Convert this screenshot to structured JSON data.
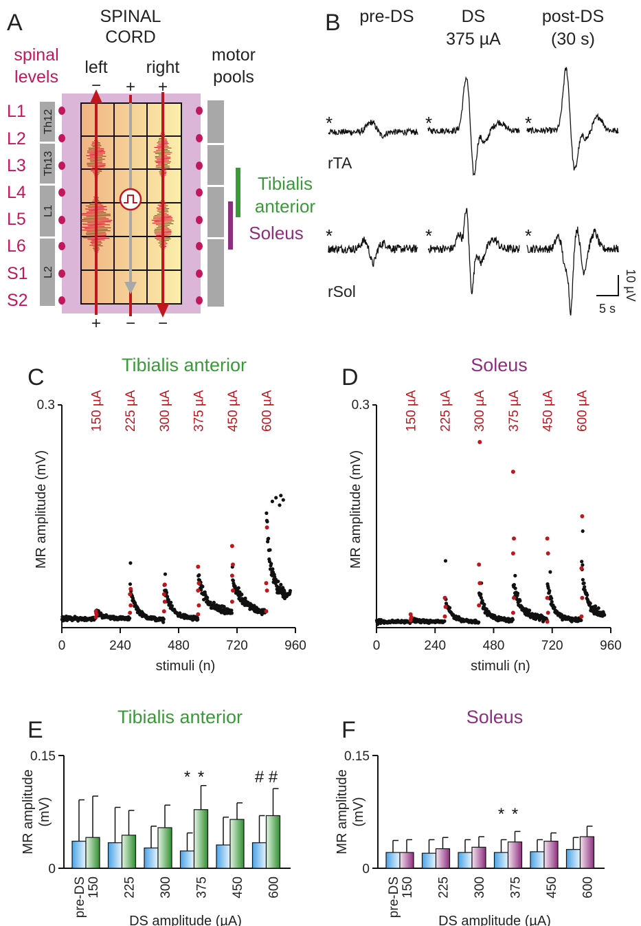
{
  "panels": {
    "A": {
      "letter": "A",
      "title_line1": "SPINAL",
      "title_line2": "CORD",
      "spinal_levels_l1": "spinal",
      "spinal_levels_l2": "levels",
      "left": "left",
      "right": "right",
      "motor_pools_l1": "motor",
      "motor_pools_l2": "pools",
      "levels": [
        "L1",
        "L2",
        "L3",
        "L4",
        "L5",
        "L6",
        "S1",
        "S2"
      ],
      "vertebrae": [
        "Th12",
        "Th13",
        "L1",
        "L2"
      ],
      "top_signs": [
        "−",
        "+",
        "+"
      ],
      "bottom_signs": [
        "+",
        "−",
        "−"
      ],
      "muscle_ta_l1": "Tibialis",
      "muscle_ta_l2": "anterior",
      "muscle_sol": "Soleus",
      "colors": {
        "levels": "#c2185b",
        "ta": "#3a9a3a",
        "sol": "#8e2e7e",
        "electrode": "#c0161d",
        "vertebra": "#a8a8a8"
      }
    },
    "B": {
      "letter": "B",
      "col1": "pre-DS",
      "col2_l1": "DS",
      "col2_l2": "375 µA",
      "col3_l1": "post-DS",
      "col3_l2": "(30 s)",
      "row1": "rTA",
      "row2": "rSol",
      "star": "*",
      "scale_y": "10 µV",
      "scale_x": "5 s"
    }
  },
  "chart_data": [
    {
      "panel": "C",
      "type": "scatter",
      "title": "Tibialis anterior",
      "title_color": "#3a9a3a",
      "xlabel": "stimuli (n)",
      "ylabel": "MR amplitude (mV)",
      "xlim": [
        0,
        960
      ],
      "ylim": [
        0,
        0.3
      ],
      "xticks": [
        0,
        240,
        480,
        720,
        960
      ],
      "yticks": [
        0.3
      ],
      "stim_labels": [
        "150 µA",
        "225 µA",
        "300 µA",
        "375 µA",
        "450 µA",
        "600 µA"
      ],
      "stim_x": [
        140,
        280,
        420,
        560,
        700,
        840
      ],
      "blocks": [
        {
          "x": [
            0,
            140
          ],
          "base": 0.012,
          "peak": 0.012,
          "tail": 0.012,
          "spread": 0.005
        },
        {
          "x": [
            140,
            280
          ],
          "base": 0.014,
          "peak": 0.022,
          "tail": 0.012,
          "spread": 0.005
        },
        {
          "x": [
            280,
            420
          ],
          "base": 0.015,
          "peak": 0.055,
          "tail": 0.01,
          "spread": 0.006
        },
        {
          "x": [
            420,
            560
          ],
          "base": 0.016,
          "peak": 0.06,
          "tail": 0.012,
          "spread": 0.007
        },
        {
          "x": [
            560,
            700
          ],
          "base": 0.03,
          "peak": 0.07,
          "tail": 0.02,
          "spread": 0.012
        },
        {
          "x": [
            700,
            840
          ],
          "base": 0.035,
          "peak": 0.07,
          "tail": 0.02,
          "spread": 0.012
        },
        {
          "x": [
            840,
            940
          ],
          "base": 0.05,
          "peak": 0.16,
          "tail": 0.045,
          "spread": 0.02
        }
      ],
      "highlights": [
        {
          "x": 140,
          "y": [
            0.014,
            0.018,
            0.022
          ]
        },
        {
          "x": 280,
          "y": [
            0.02,
            0.03,
            0.045,
            0.052
          ]
        },
        {
          "x": 420,
          "y": [
            0.022,
            0.035,
            0.045,
            0.058
          ]
        },
        {
          "x": 560,
          "y": [
            0.018,
            0.03,
            0.05,
            0.06,
            0.082
          ]
        },
        {
          "x": 700,
          "y": [
            0.035,
            0.05,
            0.07,
            0.085,
            0.11
          ]
        },
        {
          "x": 840,
          "y": [
            0.022,
            0.05,
            0.06,
            0.135
          ]
        }
      ],
      "outliers": [
        {
          "x": 282,
          "y": 0.087
        },
        {
          "x": 425,
          "y": 0.072
        },
        {
          "x": 865,
          "y": 0.17
        },
        {
          "x": 880,
          "y": 0.175
        },
        {
          "x": 895,
          "y": 0.165
        },
        {
          "x": 900,
          "y": 0.178
        },
        {
          "x": 910,
          "y": 0.172
        }
      ]
    },
    {
      "panel": "D",
      "type": "scatter",
      "title": "Soleus",
      "title_color": "#8e2e7e",
      "xlabel": "stimuli (n)",
      "ylabel": "MR amplitude (mV)",
      "xlim": [
        0,
        960
      ],
      "ylim": [
        0,
        0.3
      ],
      "xticks": [
        0,
        240,
        480,
        720,
        960
      ],
      "yticks": [
        0.3
      ],
      "stim_labels": [
        "150 µA",
        "225 µA",
        "300 µA",
        "375 µA",
        "450 µA",
        "600 µA"
      ],
      "stim_x": [
        140,
        280,
        420,
        560,
        700,
        840
      ],
      "blocks": [
        {
          "x": [
            0,
            140
          ],
          "base": 0.008,
          "peak": 0.008,
          "tail": 0.008,
          "spread": 0.004
        },
        {
          "x": [
            140,
            280
          ],
          "base": 0.008,
          "peak": 0.012,
          "tail": 0.008,
          "spread": 0.004
        },
        {
          "x": [
            280,
            420
          ],
          "base": 0.01,
          "peak": 0.04,
          "tail": 0.008,
          "spread": 0.005
        },
        {
          "x": [
            420,
            560
          ],
          "base": 0.012,
          "peak": 0.05,
          "tail": 0.01,
          "spread": 0.006
        },
        {
          "x": [
            560,
            700
          ],
          "base": 0.02,
          "peak": 0.06,
          "tail": 0.012,
          "spread": 0.01
        },
        {
          "x": [
            700,
            840
          ],
          "base": 0.012,
          "peak": 0.06,
          "tail": 0.01,
          "spread": 0.007
        },
        {
          "x": [
            840,
            935
          ],
          "base": 0.025,
          "peak": 0.09,
          "tail": 0.018,
          "spread": 0.012
        }
      ],
      "highlights": [
        {
          "x": 140,
          "y": [
            0.01,
            0.014,
            0.018
          ]
        },
        {
          "x": 280,
          "y": [
            0.015,
            0.028,
            0.04
          ]
        },
        {
          "x": 420,
          "y": [
            0.03,
            0.06,
            0.085,
            0.25
          ]
        },
        {
          "x": 560,
          "y": [
            0.02,
            0.04,
            0.1,
            0.12,
            0.21
          ]
        },
        {
          "x": 700,
          "y": [
            0.008,
            0.02,
            0.04,
            0.1,
            0.12
          ]
        },
        {
          "x": 840,
          "y": [
            0.015,
            0.04,
            0.08,
            0.15
          ]
        }
      ],
      "outliers": [
        {
          "x": 283,
          "y": 0.09
        },
        {
          "x": 430,
          "y": 0.06
        },
        {
          "x": 568,
          "y": 0.07
        },
        {
          "x": 712,
          "y": 0.075
        },
        {
          "x": 845,
          "y": 0.13
        }
      ]
    },
    {
      "panel": "E",
      "type": "bar",
      "title": "Tibialis anterior",
      "title_color": "#3a9a3a",
      "xlabel": "DS amplitude (µA)",
      "ylabel_l1": "MR amplitude",
      "ylabel_l2": "(mV)",
      "ylim": [
        0,
        0.15
      ],
      "yticks": [
        0,
        0.15
      ],
      "ytick_labels": [
        "0",
        "0.15"
      ],
      "categories": [
        "pre-DS",
        "150",
        "225",
        "300",
        "375",
        "450",
        "600"
      ],
      "pre_ds": {
        "values": [
          0.036,
          0.034,
          0.027,
          0.023,
          0.031,
          0.034
        ],
        "errors": [
          0.055,
          0.047,
          0.029,
          0.024,
          0.037,
          0.036
        ],
        "color": "#58b0ea"
      },
      "ds": {
        "values": [
          0.041,
          0.044,
          0.054,
          0.078,
          0.065,
          0.07
        ],
        "errors": [
          0.055,
          0.033,
          0.03,
          0.032,
          0.022,
          0.036
        ],
        "color": "#3a9a3a"
      },
      "markers": [
        {
          "pair": 3,
          "text": "*",
          "on": "pre"
        },
        {
          "pair": 3,
          "text": "*",
          "on": "ds"
        },
        {
          "pair": 5,
          "text": "#",
          "on": "pre"
        },
        {
          "pair": 5,
          "text": "#",
          "on": "ds"
        }
      ]
    },
    {
      "panel": "F",
      "type": "bar",
      "title": "Soleus",
      "title_color": "#8e2e7e",
      "xlabel": "DS amplitude (µA)",
      "ylabel_l1": "MR amplitude",
      "ylabel_l2": "(mV)",
      "ylim": [
        0,
        0.15
      ],
      "yticks": [
        0,
        0.15
      ],
      "ytick_labels": [
        "0",
        "0.15"
      ],
      "categories": [
        "pre-DS",
        "150",
        "225",
        "300",
        "375",
        "450",
        "600"
      ],
      "pre_ds": {
        "values": [
          0.021,
          0.02,
          0.021,
          0.021,
          0.022,
          0.025
        ],
        "errors": [
          0.016,
          0.018,
          0.017,
          0.017,
          0.016,
          0.016
        ],
        "color": "#58b0ea"
      },
      "ds": {
        "values": [
          0.021,
          0.026,
          0.028,
          0.035,
          0.036,
          0.042
        ],
        "errors": [
          0.017,
          0.015,
          0.014,
          0.014,
          0.011,
          0.014
        ],
        "color": "#8e2e7e"
      },
      "markers": [
        {
          "pair": 3,
          "text": "*",
          "on": "pre"
        },
        {
          "pair": 3,
          "text": "*",
          "on": "ds"
        }
      ]
    }
  ]
}
